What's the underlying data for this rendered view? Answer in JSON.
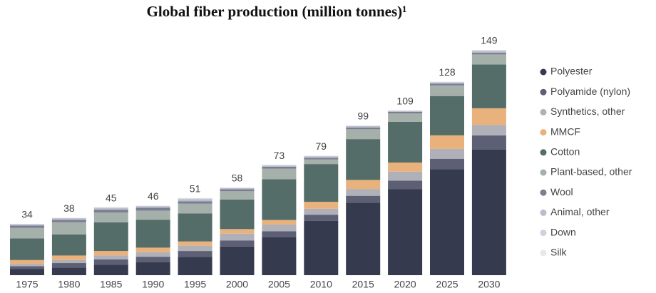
{
  "chart_data": {
    "type": "stacked_bar",
    "title": "Global fiber production (million tonnes)¹",
    "categories": [
      "1975",
      "1980",
      "1985",
      "1990",
      "1995",
      "2000",
      "2005",
      "2010",
      "2015",
      "2020",
      "2025",
      "2030"
    ],
    "totals": [
      34,
      38,
      45,
      46,
      51,
      58,
      73,
      79,
      99,
      109,
      128,
      149
    ],
    "series": [
      {
        "name": "Polyester",
        "color": "#363a4f",
        "values": [
          4,
          5,
          7,
          8.5,
          12,
          19,
          25,
          36,
          48,
          57,
          70,
          83
        ]
      },
      {
        "name": "Polyamide (nylon)",
        "color": "#5d6075",
        "values": [
          2,
          3,
          3.5,
          3.7,
          4,
          4,
          4,
          4,
          4.5,
          5.5,
          7,
          9.4
        ]
      },
      {
        "name": "Synthetics, other",
        "color": "#b0b0b8",
        "values": [
          1.5,
          2,
          2.5,
          3,
          3.5,
          4.5,
          4.5,
          4,
          4.5,
          6,
          6.5,
          7
        ]
      },
      {
        "name": "MMCF",
        "color": "#e9b17c",
        "values": [
          2.5,
          3,
          3,
          3,
          2.8,
          3,
          3,
          4.5,
          6,
          6,
          9,
          11
        ]
      },
      {
        "name": "Cotton",
        "color": "#546d68",
        "values": [
          14.3,
          14,
          19,
          18.5,
          18.5,
          19.5,
          27,
          25,
          27,
          27,
          26,
          29
        ]
      },
      {
        "name": "Plant-based, other",
        "color": "#a6b0ab",
        "values": [
          7,
          8,
          6.5,
          6,
          6.5,
          5.5,
          7,
          3,
          6.5,
          5.5,
          7,
          6.6
        ]
      },
      {
        "name": "Wool",
        "color": "#7b7e90",
        "values": [
          1.5,
          1.6,
          1.8,
          1.9,
          1.5,
          1.3,
          1.2,
          1.1,
          1.2,
          1,
          1.1,
          1.1
        ]
      },
      {
        "name": "Animal, other",
        "color": "#b9bdcc",
        "values": [
          0.8,
          0.9,
          1,
          1,
          1.4,
          0.8,
          0.8,
          0.9,
          0.9,
          0.6,
          0.8,
          1
        ]
      },
      {
        "name": "Down",
        "color": "#cdd2dc",
        "values": [
          0.3,
          0.3,
          0.5,
          0.3,
          0.6,
          0.3,
          0.4,
          0.4,
          0.3,
          0.3,
          0.4,
          0.7
        ]
      },
      {
        "name": "Silk",
        "color": "#e4e8ef",
        "values": [
          0.1,
          0.2,
          0.2,
          0.1,
          0.2,
          0.1,
          0.1,
          0.1,
          0.1,
          0.1,
          0.2,
          0.2
        ]
      }
    ]
  }
}
